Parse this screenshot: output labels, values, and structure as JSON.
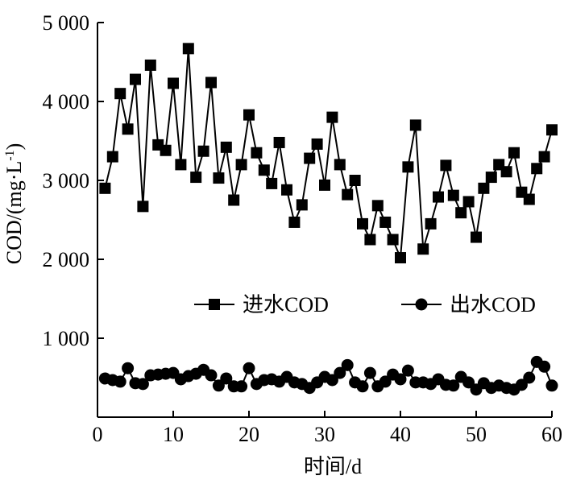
{
  "chart_data": {
    "type": "line",
    "title": "",
    "xlabel": "时间/d",
    "ylabel": "COD/(mg·L",
    "ylabel_sup": "-1",
    "ylabel_close": ")",
    "xlim": [
      0,
      60
    ],
    "ylim": [
      0,
      5000
    ],
    "xticks": [
      0,
      10,
      20,
      30,
      40,
      50,
      60
    ],
    "xtick_labels": [
      "0",
      "10",
      "20",
      "30",
      "40",
      "50",
      "60"
    ],
    "yticks": [
      1000,
      2000,
      3000,
      4000,
      5000
    ],
    "ytick_labels": [
      "1 000",
      "2 000",
      "3 000",
      "4 000",
      "5 000"
    ],
    "grid": false,
    "legend_placement": "middle",
    "x": [
      1,
      2,
      3,
      4,
      5,
      6,
      7,
      8,
      9,
      10,
      11,
      12,
      13,
      14,
      15,
      16,
      17,
      18,
      19,
      20,
      21,
      22,
      23,
      24,
      25,
      26,
      27,
      28,
      29,
      30,
      31,
      32,
      33,
      34,
      35,
      36,
      37,
      38,
      39,
      40,
      41,
      42,
      43,
      44,
      45,
      46,
      47,
      48,
      49,
      50,
      51,
      52,
      53,
      54,
      55,
      56,
      57,
      58,
      59,
      60
    ],
    "series": [
      {
        "name": "进水COD",
        "marker": "square",
        "values": [
          2900,
          3300,
          4100,
          3650,
          4280,
          2670,
          4460,
          3450,
          3380,
          4230,
          3200,
          4670,
          3040,
          3370,
          4240,
          3030,
          3420,
          2750,
          3200,
          3830,
          3350,
          3130,
          2960,
          3480,
          2880,
          2470,
          2690,
          3280,
          3460,
          2940,
          3800,
          3200,
          2820,
          3000,
          2450,
          2250,
          2680,
          2470,
          2250,
          2020,
          3170,
          3700,
          2130,
          2450,
          2790,
          3190,
          2810,
          2590,
          2730,
          2280,
          2900,
          3040,
          3200,
          3110,
          3350,
          2850,
          2760,
          3150,
          3300,
          3640
        ]
      },
      {
        "name": "出水COD",
        "marker": "circle",
        "values": [
          490,
          470,
          450,
          620,
          430,
          420,
          530,
          540,
          550,
          560,
          480,
          520,
          550,
          600,
          530,
          400,
          490,
          390,
          390,
          620,
          420,
          470,
          480,
          450,
          510,
          440,
          420,
          370,
          440,
          510,
          470,
          560,
          660,
          440,
          390,
          560,
          390,
          450,
          540,
          480,
          590,
          440,
          440,
          420,
          480,
          410,
          400,
          510,
          440,
          350,
          430,
          370,
          400,
          370,
          350,
          410,
          500,
          700,
          640,
          400
        ]
      }
    ]
  }
}
